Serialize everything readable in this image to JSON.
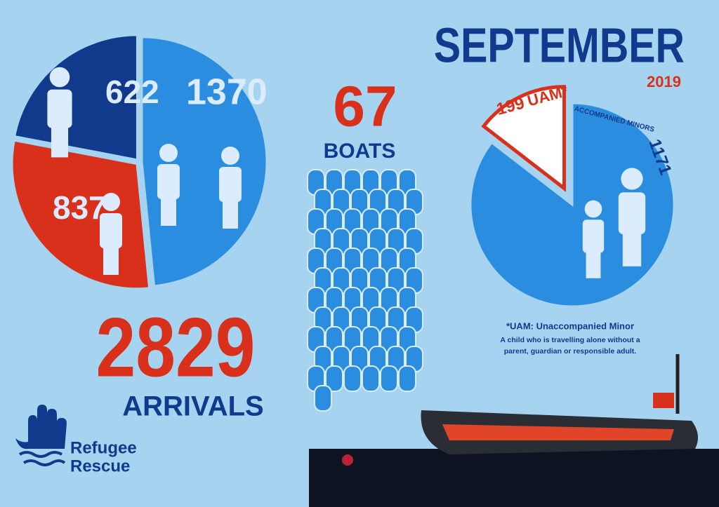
{
  "chart_data": [
    {
      "type": "pie",
      "values": [
        1370,
        837,
        622
      ],
      "colors": [
        "#2b8de0",
        "#d9301c",
        "#123a8c"
      ]
    },
    {
      "type": "pie",
      "categories": [
        "ACCOMPANIED MINORS",
        "UAM*"
      ],
      "values": [
        1171,
        199
      ],
      "colors": [
        "#2b8de0",
        "#ffffff"
      ],
      "outline": "#d9301c"
    }
  ],
  "header": {
    "title": "SEPTEMBER",
    "year": "2019"
  },
  "arrivals": {
    "value": 2829,
    "label": "ARRIVALS"
  },
  "boats": {
    "value": 67,
    "label": "BOATS"
  },
  "note": {
    "title": "*UAM: Unaccompanied Minor",
    "lines": [
      "A child who is travelling alone without a",
      "parent, guardian or responsible adult."
    ]
  },
  "logo": {
    "lines": [
      "Refugee",
      "Rescue"
    ]
  }
}
